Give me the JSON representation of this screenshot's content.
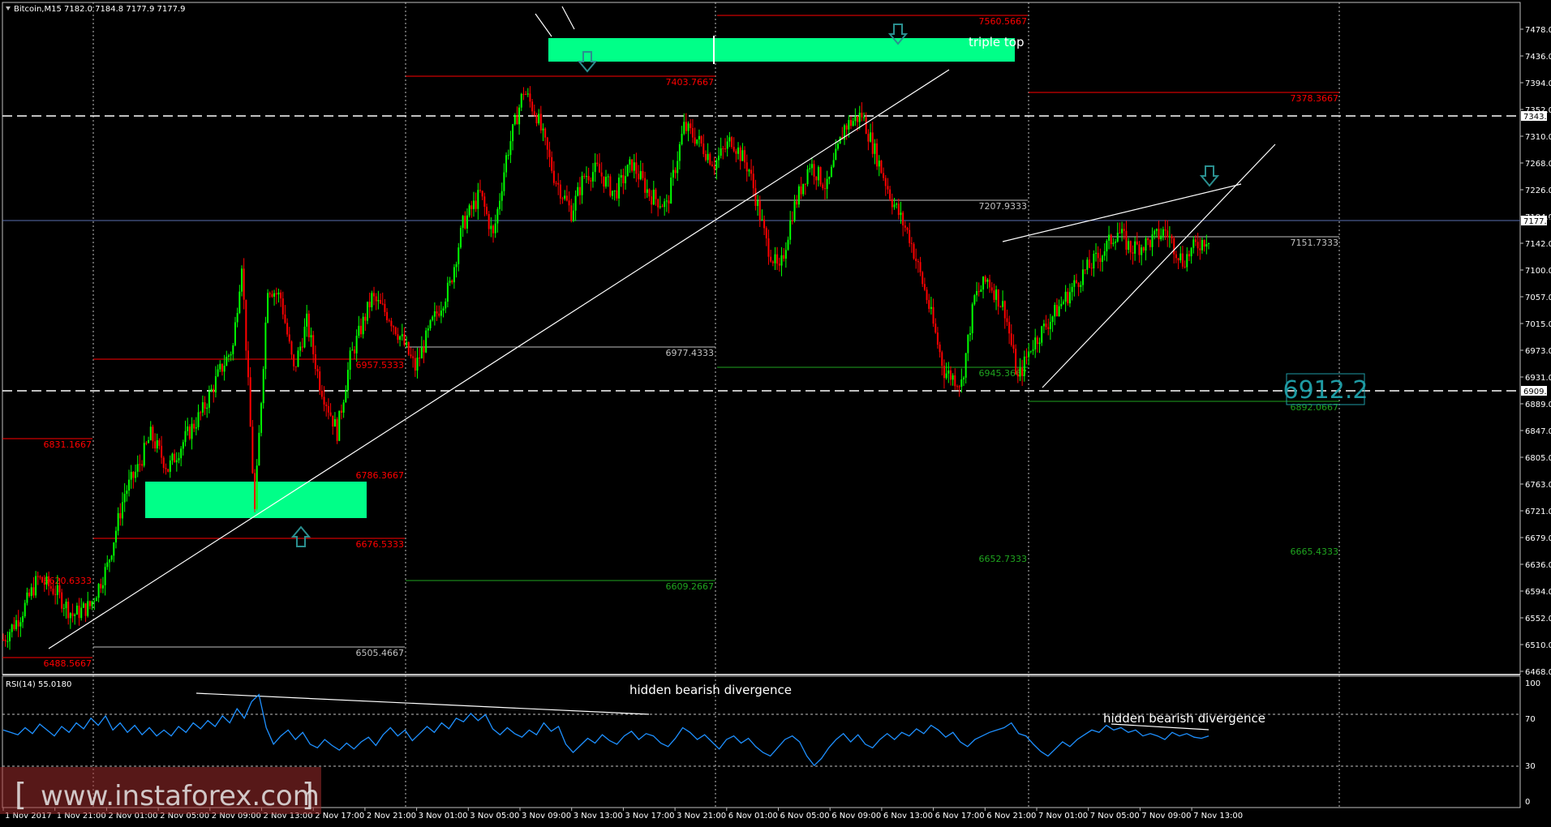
{
  "header": {
    "symbol_info": "Bitcoin,M15  7182.0 7184.8 7177.9 7177.9",
    "rsi_label": "RSI(14) 55.0180"
  },
  "colors": {
    "background": "#000000",
    "bull": "#00ff00",
    "bear": "#ff0000",
    "zone": "#00ff88",
    "arrow": "#2a8f8f",
    "rsi_line": "#1e90ff",
    "level_red": "#ff0000",
    "level_green": "#1fa51f",
    "level_gray": "#c0c0c0",
    "big_label": "#1e9aa3"
  },
  "icons": [
    "down-arrow-icon",
    "up-arrow-icon"
  ],
  "annotations": {
    "triple_top": "triple top",
    "hidden_div_1": "hidden bearish divergence",
    "hidden_div_2": "hidden bearish divergence",
    "big_price": "6912.2"
  },
  "current_price": "7177.9",
  "marked_prices": [
    "7343.0",
    "6909.5"
  ],
  "watermark": {
    "bracket_l": "[",
    "text": "www.instaforex.com",
    "bracket_r": "]"
  },
  "chart_data": {
    "type": "candlestick",
    "symbol": "Bitcoin",
    "timeframe": "M15",
    "ylim": [
      6468,
      7520
    ],
    "y_ticks": [
      "7478.0",
      "7436.0",
      "7394.0",
      "7352.0",
      "7310.0",
      "7268.0",
      "7226.0",
      "7184.0",
      "7142.0",
      "7100.0",
      "7057.0",
      "7015.0",
      "6973.0",
      "6931.0",
      "6889.0",
      "6847.0",
      "6805.0",
      "6763.0",
      "6721.0",
      "6679.0",
      "6636.0",
      "6594.0",
      "6552.0",
      "6510.0",
      "6468.0"
    ],
    "x_ticks": [
      "1 Nov 2017",
      "1 Nov 21:00",
      "2 Nov 01:00",
      "2 Nov 05:00",
      "2 Nov 09:00",
      "2 Nov 13:00",
      "2 Nov 17:00",
      "2 Nov 21:00",
      "3 Nov 01:00",
      "3 Nov 05:00",
      "3 Nov 09:00",
      "3 Nov 13:00",
      "3 Nov 17:00",
      "3 Nov 21:00",
      "6 Nov 01:00",
      "6 Nov 05:00",
      "6 Nov 09:00",
      "6 Nov 13:00",
      "6 Nov 17:00",
      "6 Nov 21:00",
      "7 Nov 01:00",
      "7 Nov 05:00",
      "7 Nov 09:00",
      "7 Nov 13:00"
    ],
    "levels": [
      {
        "label": "7560.5667",
        "value": 7560.5667,
        "color": "red"
      },
      {
        "label": "7403.7667",
        "value": 7403.7667,
        "color": "red"
      },
      {
        "label": "7378.3667",
        "value": 7378.3667,
        "color": "red"
      },
      {
        "label": "7207.9333",
        "value": 7207.9333,
        "color": "gray"
      },
      {
        "label": "7151.7333",
        "value": 7151.7333,
        "color": "gray"
      },
      {
        "label": "6977.4333",
        "value": 6977.4333,
        "color": "gray"
      },
      {
        "label": "6957.5333",
        "value": 6957.5333,
        "color": "red"
      },
      {
        "label": "6945.3667",
        "value": 6945.3667,
        "color": "green"
      },
      {
        "label": "6892.0667",
        "value": 6892.0667,
        "color": "green"
      },
      {
        "label": "6831.1667",
        "value": 6831.1667,
        "color": "red"
      },
      {
        "label": "6786.3667",
        "value": 6786.3667,
        "color": "red"
      },
      {
        "label": "6676.5333",
        "value": 6676.5333,
        "color": "red"
      },
      {
        "label": "6665.4333",
        "value": 6665.4333,
        "color": "green"
      },
      {
        "label": "6652.7333",
        "value": 6652.7333,
        "color": "green"
      },
      {
        "label": "6620.6333",
        "value": 6620.6333,
        "color": "red"
      },
      {
        "label": "6609.2667",
        "value": 6609.2667,
        "color": "green"
      },
      {
        "label": "6505.4667",
        "value": 6505.4667,
        "color": "gray"
      },
      {
        "label": "6488.5667",
        "value": 6488.5667,
        "color": "red"
      }
    ],
    "rsi": {
      "ylim": [
        0,
        100
      ],
      "ticks": [
        "100",
        "70",
        "30",
        "0"
      ],
      "value": 55.018,
      "values": [
        60,
        58,
        56,
        62,
        57,
        65,
        60,
        55,
        63,
        58,
        66,
        61,
        70,
        64,
        72,
        60,
        66,
        58,
        64,
        56,
        62,
        55,
        60,
        55,
        63,
        58,
        66,
        61,
        68,
        63,
        72,
        66,
        78,
        70,
        84,
        90,
        62,
        48,
        55,
        60,
        52,
        58,
        48,
        45,
        52,
        47,
        43,
        49,
        44,
        50,
        54,
        47,
        56,
        62,
        55,
        60,
        51,
        57,
        63,
        58,
        66,
        61,
        70,
        67,
        74,
        68,
        73,
        61,
        56,
        62,
        57,
        54,
        60,
        56,
        66,
        59,
        63,
        48,
        41,
        47,
        53,
        49,
        56,
        51,
        48,
        55,
        59,
        52,
        57,
        55,
        49,
        46,
        53,
        62,
        58,
        52,
        56,
        50,
        44,
        52,
        55,
        49,
        53,
        46,
        41,
        38,
        45,
        52,
        55,
        50,
        38,
        30,
        36,
        45,
        52,
        57,
        50,
        56,
        48,
        45,
        52,
        57,
        52,
        58,
        55,
        61,
        57,
        64,
        60,
        54,
        58,
        50,
        46,
        52,
        55,
        58,
        60,
        62,
        66,
        57,
        55,
        48,
        42,
        38,
        44,
        50,
        46,
        52,
        56,
        60,
        58,
        64,
        60,
        62,
        58,
        60,
        55,
        57,
        55,
        52,
        58,
        55,
        57,
        54,
        53,
        55
      ]
    }
  }
}
